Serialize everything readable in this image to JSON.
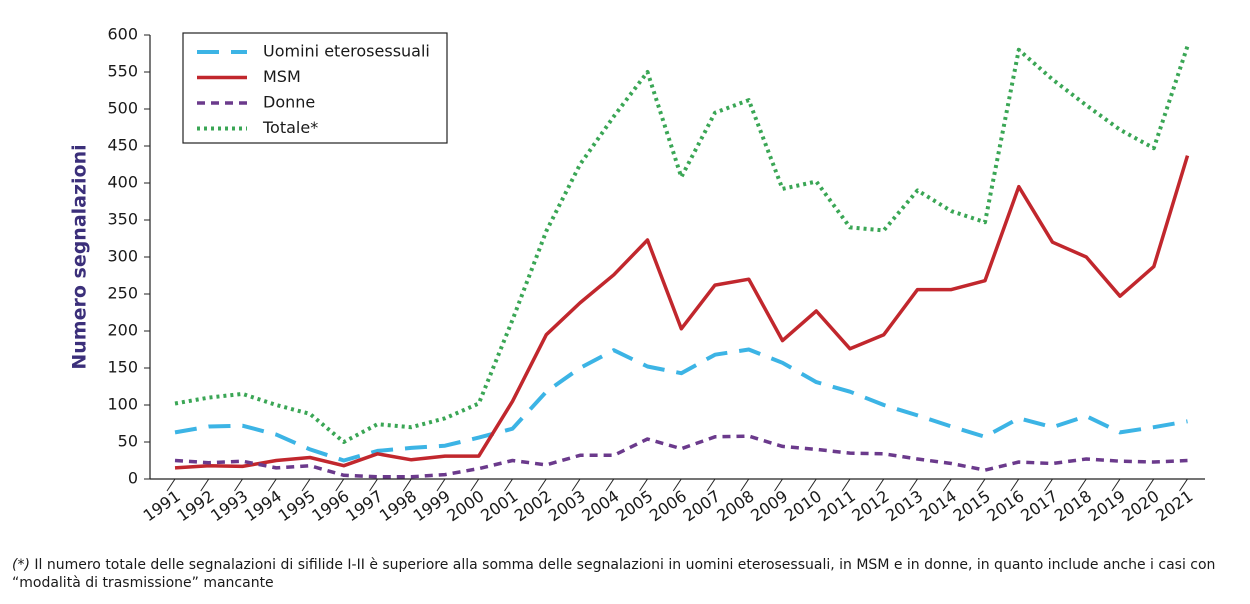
{
  "chart_data": {
    "type": "line",
    "y_label": "Numero segnalazioni",
    "categories": [
      "1991",
      "1992",
      "1993",
      "1994",
      "1995",
      "1996",
      "1997",
      "1998",
      "1999",
      "2000",
      "2001",
      "2002",
      "2003",
      "2004",
      "2005",
      "2006",
      "2007",
      "2008",
      "2009",
      "2010",
      "2011",
      "2012",
      "2013",
      "2014",
      "2015",
      "2016",
      "2017",
      "2018",
      "2019",
      "2020",
      "2021"
    ],
    "series": [
      {
        "name": "Uomini eterosessuali",
        "color": "#3cb4e5",
        "values": [
          63,
          71,
          72,
          60,
          40,
          25,
          38,
          42,
          45,
          56,
          68,
          118,
          150,
          174,
          152,
          143,
          168,
          175,
          157,
          131,
          118,
          100,
          86,
          71,
          57,
          82,
          70,
          85,
          63,
          70,
          78
        ]
      },
      {
        "name": "MSM",
        "color": "#c1272d",
        "values": [
          15,
          18,
          17,
          25,
          29,
          18,
          34,
          26,
          31,
          31,
          105,
          195,
          238,
          276,
          323,
          203,
          262,
          270,
          187,
          227,
          176,
          195,
          256,
          256,
          268,
          395,
          320,
          300,
          247,
          287,
          437
        ]
      },
      {
        "name": "Donne",
        "color": "#6b3a8c",
        "values": [
          25,
          22,
          24,
          15,
          18,
          5,
          3,
          3,
          6,
          14,
          25,
          19,
          32,
          32,
          54,
          41,
          57,
          58,
          44,
          40,
          35,
          34,
          27,
          21,
          12,
          23,
          21,
          27,
          24,
          23,
          25
        ]
      },
      {
        "name": "Totale*",
        "color": "#3aa655",
        "values": [
          102,
          110,
          115,
          100,
          88,
          50,
          74,
          70,
          82,
          102,
          215,
          335,
          425,
          490,
          550,
          408,
          495,
          512,
          392,
          402,
          340,
          336,
          390,
          362,
          347,
          580,
          540,
          505,
          472,
          447,
          585
        ]
      }
    ],
    "ylim": [
      0,
      600
    ],
    "yticks": [
      0,
      50,
      100,
      150,
      200,
      250,
      300,
      350,
      400,
      450,
      500,
      550,
      600
    ],
    "legend": "top-left",
    "note_marker": "(*)",
    "note": "Il numero totale delle segnalazioni di sifilide I-II è superiore alla somma delle segnalazioni in uomini eterosessuali, in MSM e in donne, in quanto include anche i casi con “modalità di trasmissione” mancante"
  }
}
